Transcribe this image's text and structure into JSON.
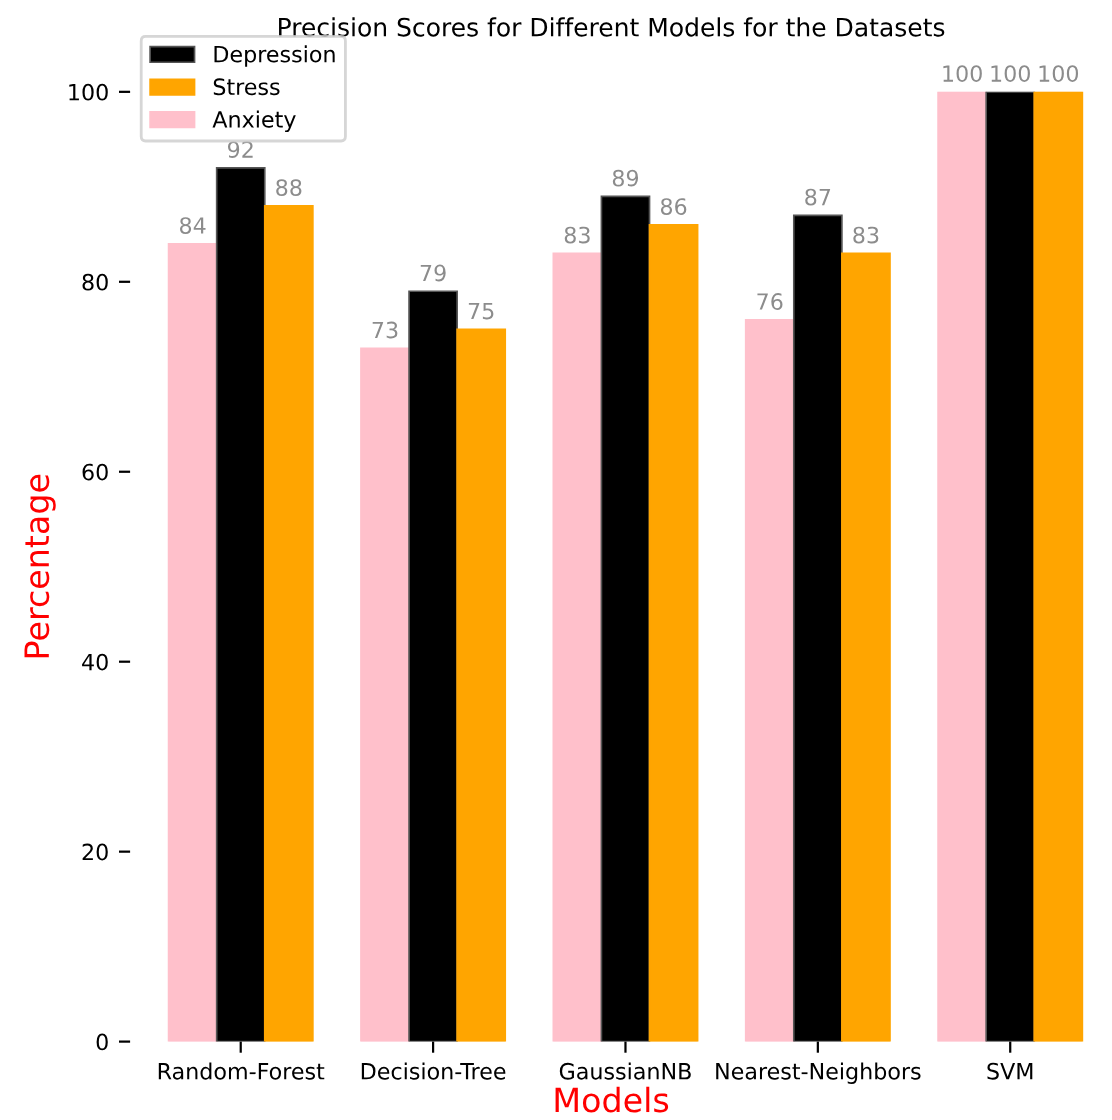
{
  "chart_data": {
    "type": "bar",
    "title": "Precision Scores for Different Models for the Datasets",
    "xlabel": "Models",
    "ylabel": "Percentage",
    "categories": [
      "Random-Forest",
      "Decision-Tree",
      "GaussianNB",
      "Nearest-Neighbors",
      "SVM"
    ],
    "series": [
      {
        "name": "Anxiety",
        "color": "#ffc0cb",
        "values": [
          84,
          73,
          83,
          76,
          100
        ]
      },
      {
        "name": "Depression",
        "color": "#000000",
        "values": [
          92,
          79,
          89,
          87,
          100
        ]
      },
      {
        "name": "Stress",
        "color": "#ffa500",
        "values": [
          88,
          75,
          86,
          83,
          100
        ]
      }
    ],
    "data_labels": true,
    "ylim": [
      0,
      100
    ],
    "yticks": [
      0,
      20,
      40,
      60,
      80,
      100
    ],
    "grid": false,
    "legend": "top left"
  }
}
